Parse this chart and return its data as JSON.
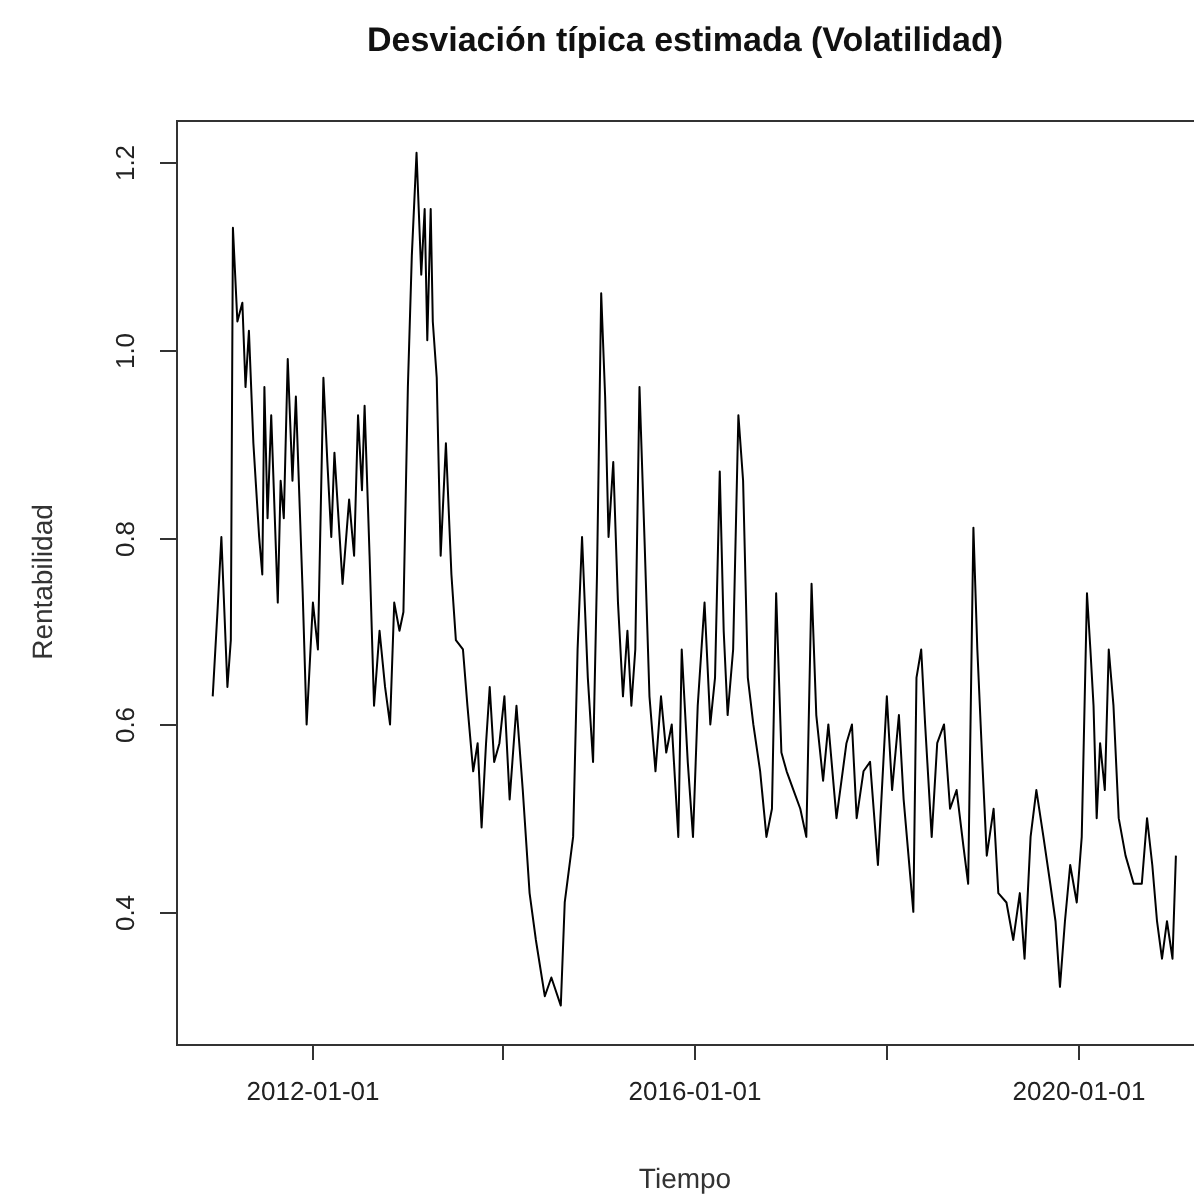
{
  "chart_data": {
    "type": "line",
    "title": "Desviación típica estimada (Volatilidad)",
    "xlabel": "Tiempo",
    "ylabel": "Rentabilidad",
    "color": "#000000",
    "marker": "none",
    "legend": false,
    "grid": false,
    "x": [
      "2010-12-22",
      "2011-01-09",
      "2011-01-24",
      "2011-02-16",
      "2011-03-01",
      "2011-03-09",
      "2011-03-26",
      "2011-04-14",
      "2011-04-26",
      "2011-05-09",
      "2011-05-26",
      "2011-06-17",
      "2011-06-29",
      "2011-07-07",
      "2011-07-19",
      "2011-08-02",
      "2011-08-27",
      "2011-09-07",
      "2011-09-19",
      "2011-10-04",
      "2011-10-22",
      "2011-11-04",
      "2011-11-30",
      "2011-12-15",
      "2012-01-08",
      "2012-01-27",
      "2012-02-17",
      "2012-03-03",
      "2012-03-18",
      "2012-03-30",
      "2012-04-30",
      "2012-05-25",
      "2012-06-13",
      "2012-06-28",
      "2012-07-13",
      "2012-07-23",
      "2012-08-11",
      "2012-08-28",
      "2012-09-18",
      "2012-10-09",
      "2012-10-28",
      "2012-11-13",
      "2012-12-03",
      "2012-12-18",
      "2013-01-04",
      "2013-01-19",
      "2013-02-06",
      "2013-02-24",
      "2013-03-09",
      "2013-03-19",
      "2013-04-01",
      "2013-04-09",
      "2013-04-24",
      "2013-05-09",
      "2013-05-29",
      "2013-06-19",
      "2013-07-06",
      "2013-08-02",
      "2013-08-19",
      "2013-09-10",
      "2013-09-27",
      "2013-10-12",
      "2013-10-29",
      "2013-11-12",
      "2013-11-29",
      "2013-12-19",
      "2014-01-07",
      "2014-01-27",
      "2014-02-22",
      "2014-03-18",
      "2014-04-13",
      "2014-05-07",
      "2014-06-10",
      "2014-07-05",
      "2014-08-10",
      "2014-08-25",
      "2014-09-26",
      "2014-10-13",
      "2014-10-30",
      "2014-11-21",
      "2014-12-11",
      "2014-12-26",
      "2015-01-11",
      "2015-01-26",
      "2015-02-08",
      "2015-02-26",
      "2015-03-16",
      "2015-04-04",
      "2015-04-21",
      "2015-05-06",
      "2015-05-21",
      "2015-06-06",
      "2015-06-26",
      "2015-07-14",
      "2015-08-06",
      "2015-08-27",
      "2015-09-16",
      "2015-10-07",
      "2015-11-01",
      "2015-11-14",
      "2015-12-07",
      "2015-12-27",
      "2016-01-14",
      "2016-02-09",
      "2016-03-02",
      "2016-03-20",
      "2016-04-07",
      "2016-04-22",
      "2016-05-07",
      "2016-05-28",
      "2016-06-17",
      "2016-07-05",
      "2016-07-23",
      "2016-08-13",
      "2016-09-08",
      "2016-10-02",
      "2016-10-23",
      "2016-11-08",
      "2016-11-28",
      "2016-12-18",
      "2017-01-13",
      "2017-02-08",
      "2017-03-03",
      "2017-03-23",
      "2017-04-10",
      "2017-05-06",
      "2017-05-26",
      "2017-06-26",
      "2017-08-03",
      "2017-08-24",
      "2017-09-11",
      "2017-10-07",
      "2017-11-01",
      "2017-12-01",
      "2018-01-04",
      "2018-01-24",
      "2018-02-19",
      "2018-03-09",
      "2018-04-15",
      "2018-04-27",
      "2018-05-15",
      "2018-05-30",
      "2018-06-24",
      "2018-07-15",
      "2018-08-10",
      "2018-09-02",
      "2018-09-27",
      "2018-10-23",
      "2018-11-10",
      "2018-11-30",
      "2018-12-15",
      "2019-01-03",
      "2019-01-20",
      "2019-02-15",
      "2019-03-05",
      "2019-04-05",
      "2019-05-01",
      "2019-05-26",
      "2019-06-13",
      "2019-07-06",
      "2019-07-28",
      "2019-08-24",
      "2019-09-19",
      "2019-10-09",
      "2019-10-26",
      "2019-11-14",
      "2019-12-04",
      "2019-12-29",
      "2020-01-17",
      "2020-02-06",
      "2020-02-19",
      "2020-03-02",
      "2020-03-14",
      "2020-03-27",
      "2020-04-14",
      "2020-04-29",
      "2020-05-17",
      "2020-06-06",
      "2020-07-02",
      "2020-08-02",
      "2020-09-02",
      "2020-09-22",
      "2020-10-12",
      "2020-10-30",
      "2020-11-18",
      "2020-12-07",
      "2020-12-28",
      "2021-01-10"
    ],
    "values": [
      0.63,
      0.72,
      0.8,
      0.64,
      0.69,
      1.13,
      1.03,
      1.05,
      0.96,
      1.02,
      0.9,
      0.8,
      0.76,
      0.96,
      0.82,
      0.93,
      0.73,
      0.86,
      0.82,
      0.99,
      0.86,
      0.95,
      0.74,
      0.6,
      0.73,
      0.68,
      0.97,
      0.88,
      0.8,
      0.89,
      0.75,
      0.84,
      0.78,
      0.93,
      0.85,
      0.94,
      0.78,
      0.62,
      0.7,
      0.64,
      0.6,
      0.73,
      0.7,
      0.72,
      0.96,
      1.1,
      1.21,
      1.08,
      1.15,
      1.01,
      1.15,
      1.03,
      0.97,
      0.78,
      0.9,
      0.76,
      0.69,
      0.68,
      0.62,
      0.55,
      0.58,
      0.49,
      0.58,
      0.64,
      0.56,
      0.58,
      0.63,
      0.52,
      0.62,
      0.53,
      0.42,
      0.37,
      0.31,
      0.33,
      0.3,
      0.41,
      0.48,
      0.68,
      0.8,
      0.65,
      0.56,
      0.76,
      1.06,
      0.95,
      0.8,
      0.88,
      0.73,
      0.63,
      0.7,
      0.62,
      0.68,
      0.96,
      0.79,
      0.63,
      0.55,
      0.63,
      0.57,
      0.6,
      0.48,
      0.68,
      0.56,
      0.48,
      0.62,
      0.73,
      0.6,
      0.65,
      0.87,
      0.7,
      0.61,
      0.68,
      0.93,
      0.86,
      0.65,
      0.6,
      0.55,
      0.48,
      0.51,
      0.74,
      0.57,
      0.55,
      0.53,
      0.51,
      0.48,
      0.75,
      0.61,
      0.54,
      0.6,
      0.5,
      0.58,
      0.6,
      0.5,
      0.55,
      0.56,
      0.45,
      0.63,
      0.53,
      0.61,
      0.52,
      0.4,
      0.65,
      0.68,
      0.6,
      0.48,
      0.58,
      0.6,
      0.51,
      0.53,
      0.47,
      0.43,
      0.81,
      0.68,
      0.56,
      0.46,
      0.51,
      0.42,
      0.41,
      0.37,
      0.42,
      0.35,
      0.48,
      0.53,
      0.48,
      0.43,
      0.39,
      0.32,
      0.39,
      0.45,
      0.41,
      0.48,
      0.74,
      0.68,
      0.62,
      0.5,
      0.58,
      0.53,
      0.68,
      0.62,
      0.5,
      0.46,
      0.43,
      0.43,
      0.5,
      0.45,
      0.39,
      0.35,
      0.39,
      0.35,
      0.46
    ],
    "xlim": [
      "2010-08-04",
      "2021-03-20"
    ],
    "xticks": [
      "2012-01-01",
      {
        "value": "2014-01-01",
        "label": null
      },
      "2016-01-01",
      {
        "value": "2018-01-01",
        "label": null
      },
      "2020-01-01"
    ],
    "ylim": [
      0.259,
      1.245
    ],
    "yticks": [
      0.4,
      0.6,
      0.8,
      {
        "value": 1,
        "label": "1.0"
      },
      {
        "value": 1.2,
        "label": "1.2"
      }
    ]
  }
}
